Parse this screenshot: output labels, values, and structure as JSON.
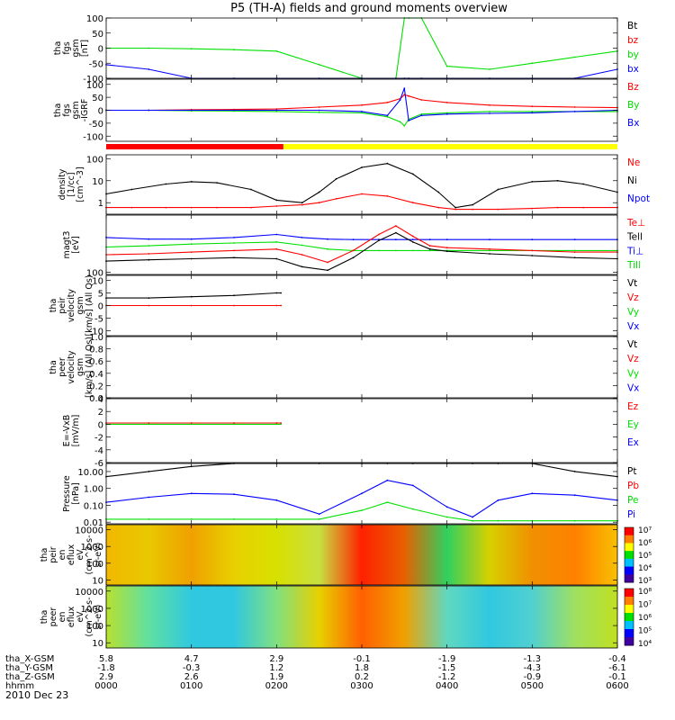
{
  "title": "P5 (TH-A) fields and ground moments overview",
  "date_label": "2010 Dec 23",
  "colors": {
    "black": "#000000",
    "red": "#ff0000",
    "green": "#00e000",
    "blue": "#0000ff",
    "yellow": "#ffff00"
  },
  "ephemeris": {
    "row_labels": [
      "tha_X-GSM",
      "tha_Y-GSM",
      "tha_Z-GSM",
      "hhmm"
    ],
    "columns": [
      [
        "5.8",
        "-1.8",
        "2.9",
        "0000"
      ],
      [
        "4.7",
        "-0.3",
        "2.6",
        "0100"
      ],
      [
        "2.9",
        "1.2",
        "1.9",
        "0200"
      ],
      [
        "-0.1",
        "1.8",
        "0.2",
        "0300"
      ],
      [
        "-1.9",
        "-1.5",
        "-1.2",
        "0400"
      ],
      [
        "-1.3",
        "-4.3",
        "-0.9",
        "0500"
      ],
      [
        "-0.4",
        "-6.1",
        "-0.1",
        "0600"
      ]
    ]
  },
  "mode_bar": {
    "segments": [
      {
        "start_hour": 0.0,
        "end_hour": 2.08,
        "color": "#ff0000"
      },
      {
        "start_hour": 2.08,
        "end_hour": 6.0,
        "color": "#ffff00"
      }
    ]
  },
  "chart_data": [
    {
      "type": "line",
      "ylabel_lines": [
        "tha",
        "fgs",
        "gsm",
        "[nT]"
      ],
      "ylim": [
        -100,
        100
      ],
      "yticks": [
        "100",
        "50",
        "0",
        "-50",
        "-100"
      ],
      "tick_values": [
        100,
        50,
        0,
        -50,
        -100
      ],
      "legend": [
        {
          "name": "Bt",
          "color": "#000000"
        },
        {
          "name": "bz",
          "color": "#ff0000"
        },
        {
          "name": "by",
          "color": "#00e000"
        },
        {
          "name": "bx",
          "color": "#0000ff"
        }
      ],
      "x_hours": [
        0,
        0.5,
        1,
        1.5,
        2,
        2.5,
        3,
        3.4,
        3.5,
        3.55,
        3.7,
        4,
        4.5,
        5,
        5.5,
        6
      ],
      "series": [
        {
          "name": "by",
          "color": "#00e000",
          "values": [
            0,
            0,
            -2,
            -5,
            -10,
            -55,
            -100,
            -100,
            100,
            100,
            100,
            -60,
            -70,
            -50,
            -30,
            -10
          ]
        },
        {
          "name": "bx",
          "color": "#0000ff",
          "values": [
            -55,
            -70,
            -100,
            -100,
            -100,
            -100,
            -100,
            -100,
            -100,
            -100,
            -100,
            -100,
            -100,
            -100,
            -100,
            -70
          ]
        }
      ]
    },
    {
      "type": "line",
      "ylabel_lines": [
        "tha",
        "fgs",
        "gsm",
        "-IGRF"
      ],
      "ylim": [
        -120,
        120
      ],
      "yticks": [
        "100",
        "50",
        "0",
        "-50",
        "-100"
      ],
      "tick_values": [
        100,
        50,
        0,
        -50,
        -100
      ],
      "legend": [
        {
          "name": "Bz",
          "color": "#ff0000"
        },
        {
          "name": "By",
          "color": "#00e000"
        },
        {
          "name": "Bx",
          "color": "#0000ff"
        }
      ],
      "x_hours": [
        0,
        0.5,
        1,
        1.5,
        2,
        2.5,
        3,
        3.3,
        3.45,
        3.5,
        3.55,
        3.7,
        4,
        4.5,
        5,
        5.5,
        6
      ],
      "series": [
        {
          "name": "Bz",
          "color": "#ff0000",
          "values": [
            0,
            0,
            2,
            3,
            5,
            12,
            20,
            30,
            45,
            60,
            55,
            40,
            30,
            20,
            15,
            12,
            10
          ]
        },
        {
          "name": "By",
          "color": "#00e000",
          "values": [
            0,
            0,
            -2,
            -3,
            -5,
            -8,
            -10,
            -25,
            -45,
            -60,
            -35,
            -15,
            -10,
            -5,
            -5,
            -5,
            -5
          ]
        },
        {
          "name": "Bx",
          "color": "#0000ff",
          "values": [
            0,
            0,
            0,
            0,
            0,
            0,
            -5,
            -20,
            40,
            85,
            -40,
            -20,
            -15,
            -12,
            -10,
            -5,
            0
          ]
        }
      ]
    },
    {
      "type": "line",
      "ylabel_lines": [
        "density",
        "[1/cc]",
        "[cm^-3]"
      ],
      "scale": "log",
      "ylim": [
        0.3,
        150
      ],
      "yticks": [
        "100",
        "10",
        "1"
      ],
      "tick_values": [
        100,
        10,
        1
      ],
      "legend": [
        {
          "name": "Ne",
          "color": "#ff0000"
        },
        {
          "name": "Ni",
          "color": "#000000"
        },
        {
          "name": "Npot",
          "color": "#0000ff"
        }
      ],
      "x_hours": [
        0,
        0.3,
        0.7,
        1,
        1.3,
        1.7,
        2,
        2.3,
        2.5,
        2.7,
        3,
        3.3,
        3.6,
        3.9,
        4.1,
        4.3,
        4.6,
        5,
        5.3,
        5.6,
        6
      ],
      "series": [
        {
          "name": "Ni",
          "color": "#000000",
          "values": [
            2.5,
            4,
            7,
            9,
            8,
            4,
            1.3,
            1,
            3,
            12,
            40,
            60,
            20,
            3,
            0.6,
            0.8,
            4,
            9,
            10,
            7,
            3
          ]
        },
        {
          "name": "Ne",
          "color": "#ff0000",
          "values": [
            0.6,
            0.6,
            0.6,
            0.6,
            0.6,
            0.6,
            0.7,
            0.8,
            1,
            1.5,
            2.5,
            2,
            1,
            0.6,
            0.5,
            0.5,
            0.5,
            0.55,
            0.6,
            0.6,
            0.6
          ]
        }
      ]
    },
    {
      "type": "line",
      "ylabel_lines": [
        "magt3",
        "[eV]"
      ],
      "scale": "log",
      "ylim": [
        90,
        1500
      ],
      "yticks": [
        "100"
      ],
      "tick_values": [
        100
      ],
      "legend": [
        {
          "name": "Te⊥",
          "color": "#ff0000"
        },
        {
          "name": "Tell",
          "color": "#000000"
        },
        {
          "name": "Ti⊥",
          "color": "#0000ff"
        },
        {
          "name": "Till",
          "color": "#00e000"
        }
      ],
      "x_hours": [
        0,
        0.5,
        1,
        1.5,
        2,
        2.3,
        2.6,
        2.9,
        3.2,
        3.4,
        3.6,
        3.8,
        4,
        4.5,
        5,
        5.5,
        6
      ],
      "series": [
        {
          "name": "Ti⊥",
          "color": "#0000ff",
          "values": [
            520,
            480,
            480,
            520,
            600,
            520,
            480,
            470,
            470,
            470,
            470,
            470,
            470,
            470,
            470,
            470,
            470
          ]
        },
        {
          "name": "Till",
          "color": "#00e000",
          "values": [
            330,
            350,
            380,
            400,
            420,
            360,
            300,
            280,
            280,
            280,
            280,
            280,
            280,
            280,
            280,
            280,
            280
          ]
        },
        {
          "name": "Te⊥",
          "color": "#ff0000",
          "values": [
            230,
            240,
            260,
            280,
            300,
            230,
            160,
            280,
            600,
            900,
            550,
            350,
            320,
            300,
            280,
            260,
            260
          ]
        },
        {
          "name": "Tell",
          "color": "#000000",
          "values": [
            170,
            180,
            190,
            200,
            190,
            130,
            110,
            200,
            450,
            650,
            420,
            300,
            270,
            240,
            220,
            200,
            190
          ]
        }
      ]
    },
    {
      "type": "line",
      "ylabel_lines": [
        "tha",
        "peir",
        "velocity",
        "gsm",
        "[km/s] (All Qs)"
      ],
      "ylim": [
        -12,
        12
      ],
      "yticks": [
        "10",
        "5",
        "0",
        "-5",
        "-10"
      ],
      "tick_values": [
        10,
        5,
        0,
        -5,
        -10
      ],
      "legend": [
        {
          "name": "Vt",
          "color": "#000000"
        },
        {
          "name": "Vz",
          "color": "#ff0000"
        },
        {
          "name": "Vy",
          "color": "#00e000"
        },
        {
          "name": "Vx",
          "color": "#0000ff"
        }
      ],
      "x_hours": [
        0,
        0.5,
        1,
        1.5,
        2,
        2.05
      ],
      "series": [
        {
          "name": "Vt",
          "color": "#000000",
          "values": [
            3,
            3,
            3.5,
            4,
            5,
            5
          ]
        },
        {
          "name": "Vz",
          "color": "#ff0000",
          "values": [
            0,
            0,
            0,
            0,
            0,
            0
          ]
        }
      ]
    },
    {
      "type": "line",
      "ylabel_lines": [
        "tha",
        "peer",
        "velocity",
        "gsm",
        "[km/s] (All Qs)"
      ],
      "ylim": [
        0,
        1
      ],
      "yticks": [
        "1.0",
        "0.8",
        "0.6",
        "0.4",
        "0.2",
        "0.0"
      ],
      "tick_values": [
        1.0,
        0.8,
        0.6,
        0.4,
        0.2,
        0.0
      ],
      "legend": [
        {
          "name": "Vt",
          "color": "#000000"
        },
        {
          "name": "Vz",
          "color": "#ff0000"
        },
        {
          "name": "Vy",
          "color": "#00e000"
        },
        {
          "name": "Vx",
          "color": "#0000ff"
        }
      ],
      "x_hours": [],
      "series": []
    },
    {
      "type": "line",
      "ylabel_lines": [
        "E=-VxB",
        "[mV/m]"
      ],
      "ylim": [
        -6,
        4
      ],
      "yticks": [
        "4",
        "2",
        "0",
        "-2",
        "-4",
        "-6"
      ],
      "tick_values": [
        4,
        2,
        0,
        -2,
        -4,
        -6
      ],
      "legend": [
        {
          "name": "Ez",
          "color": "#ff0000"
        },
        {
          "name": "Ey",
          "color": "#00e000"
        },
        {
          "name": "Ex",
          "color": "#0000ff"
        }
      ],
      "x_hours": [
        0,
        0.5,
        1,
        1.5,
        2,
        2.05
      ],
      "series": [
        {
          "name": "Ey",
          "color": "#00e000",
          "values": [
            0,
            0,
            0,
            0,
            0,
            0
          ]
        },
        {
          "name": "Ez",
          "color": "#ff0000",
          "values": [
            0.2,
            0.2,
            0.2,
            0.2,
            0.2,
            0.2
          ]
        }
      ]
    },
    {
      "type": "line",
      "ylabel_lines": [
        "Pressure",
        "[nPa]"
      ],
      "scale": "log",
      "ylim": [
        0.008,
        30
      ],
      "yticks": [
        "10.00",
        "1.00",
        "0.10",
        "0.01"
      ],
      "tick_values": [
        10,
        1,
        0.1,
        0.01
      ],
      "legend": [
        {
          "name": "Pt",
          "color": "#000000"
        },
        {
          "name": "Pb",
          "color": "#ff0000"
        },
        {
          "name": "Pe",
          "color": "#00e000"
        },
        {
          "name": "Pi",
          "color": "#0000ff"
        }
      ],
      "x_hours": [
        0,
        0.5,
        1,
        1.5,
        2,
        2.5,
        3,
        3.3,
        3.6,
        4,
        4.3,
        4.6,
        5,
        5.5,
        6
      ],
      "series": [
        {
          "name": "Pt",
          "color": "#000000",
          "values": [
            5,
            10,
            20,
            30,
            30,
            30,
            30,
            30,
            30,
            30,
            30,
            30,
            30,
            10,
            5
          ]
        },
        {
          "name": "Pi",
          "color": "#0000ff",
          "values": [
            0.15,
            0.3,
            0.5,
            0.45,
            0.2,
            0.03,
            0.5,
            3,
            1.5,
            0.08,
            0.02,
            0.2,
            0.5,
            0.4,
            0.2
          ]
        },
        {
          "name": "Pe",
          "color": "#00e000",
          "values": [
            0.015,
            0.015,
            0.015,
            0.015,
            0.015,
            0.015,
            0.05,
            0.15,
            0.06,
            0.02,
            0.012,
            0.012,
            0.012,
            0.012,
            0.012
          ]
        }
      ]
    },
    {
      "type": "heatmap",
      "ylabel_lines": [
        "tha",
        "peir",
        "en",
        "eflux",
        "eV",
        "(cm^2-s-",
        "sr-eV)"
      ],
      "yticks": [
        "10000",
        "1000",
        "100",
        "10"
      ],
      "tick_values": [
        10000,
        1000,
        100,
        10
      ],
      "colorbar_labels": [
        "10⁷",
        "10⁶",
        "10⁵",
        "10⁴",
        "10³"
      ],
      "columns_hours": [
        0,
        0.5,
        1,
        1.5,
        2,
        2.5,
        3,
        3.5,
        4,
        4.5,
        5,
        5.5,
        6
      ],
      "column_colors": [
        "#f2b800",
        "#e8c800",
        "#f0a000",
        "#e8d000",
        "#d8e000",
        "#c8e040",
        "#ff2000",
        "#e86000",
        "#30d060",
        "#d8d000",
        "#f09000",
        "#ff8000",
        "#f8c000"
      ]
    },
    {
      "type": "heatmap",
      "ylabel_lines": [
        "tha",
        "peer",
        "en",
        "eflux",
        "eV",
        "(cm^2-s-",
        "sr-eV)"
      ],
      "yticks": [
        "10000",
        "1000",
        "100",
        "10"
      ],
      "tick_values": [
        10000,
        1000,
        100,
        10
      ],
      "colorbar_labels": [
        "10⁸",
        "10⁷",
        "10⁶",
        "10⁵",
        "10⁴"
      ],
      "columns_hours": [
        0,
        0.5,
        1,
        1.5,
        2,
        2.5,
        3,
        3.5,
        4,
        4.5,
        5,
        5.5,
        6
      ],
      "column_colors": [
        "#b8e030",
        "#60e0a0",
        "#30c8e0",
        "#30c8e0",
        "#80e080",
        "#e8d000",
        "#ff6000",
        "#f0a000",
        "#60d8c0",
        "#30c8e0",
        "#50d0d0",
        "#a0e060",
        "#c0e020"
      ]
    }
  ]
}
